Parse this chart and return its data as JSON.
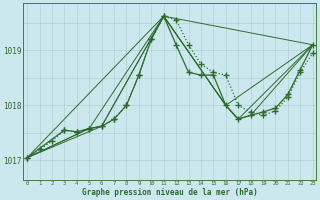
{
  "title": "Graphe pression niveau de la mer (hPa)",
  "background_color": "#cce8ee",
  "grid_color": "#aacccc",
  "line_color": "#2d6a2d",
  "yticks": [
    1017,
    1018,
    1019
  ],
  "ylim": [
    1016.65,
    1019.85
  ],
  "xlim": [
    -0.3,
    23.3
  ],
  "series": [
    {
      "name": "dotted_with_markers",
      "x": [
        0,
        1,
        2,
        3,
        4,
        5,
        6,
        7,
        8,
        9,
        10,
        11,
        12,
        13,
        14,
        15,
        16,
        17,
        18,
        19,
        20,
        21,
        22,
        23
      ],
      "y": [
        1017.05,
        1017.2,
        1017.35,
        1017.55,
        1017.52,
        1017.58,
        1017.62,
        1017.75,
        1018.0,
        1018.55,
        1019.2,
        1019.62,
        1019.55,
        1019.1,
        1018.75,
        1018.6,
        1018.55,
        1018.0,
        1017.88,
        1017.82,
        1017.9,
        1018.15,
        1018.6,
        1018.95
      ],
      "linestyle": "dotted",
      "linewidth": 0.9,
      "marker": "+",
      "markersize": 4
    },
    {
      "name": "solid_with_markers",
      "x": [
        0,
        3,
        4,
        5,
        6,
        7,
        8,
        9,
        10,
        11,
        12,
        13,
        14,
        15,
        16,
        17,
        18,
        19,
        20,
        21,
        22,
        23
      ],
      "y": [
        1017.05,
        1017.55,
        1017.52,
        1017.58,
        1017.62,
        1017.75,
        1018.0,
        1018.55,
        1019.2,
        1019.62,
        1019.1,
        1018.6,
        1018.55,
        1018.55,
        1018.0,
        1017.75,
        1017.82,
        1017.88,
        1017.95,
        1018.2,
        1018.65,
        1019.1
      ],
      "linestyle": "solid",
      "linewidth": 0.9,
      "marker": "+",
      "markersize": 4
    },
    {
      "name": "thin_line_1",
      "x": [
        0,
        11,
        23
      ],
      "y": [
        1017.05,
        1019.62,
        1019.1
      ],
      "linestyle": "solid",
      "linewidth": 0.7,
      "marker": null,
      "markersize": 0
    },
    {
      "name": "thin_line_2",
      "x": [
        0,
        6,
        11,
        16,
        23
      ],
      "y": [
        1017.05,
        1017.62,
        1019.62,
        1018.0,
        1019.1
      ],
      "linestyle": "solid",
      "linewidth": 0.7,
      "marker": null,
      "markersize": 0
    },
    {
      "name": "thin_line_3",
      "x": [
        0,
        5,
        6,
        11,
        16,
        17,
        23
      ],
      "y": [
        1017.05,
        1017.58,
        1017.62,
        1019.62,
        1018.0,
        1017.75,
        1019.1
      ],
      "linestyle": "solid",
      "linewidth": 0.7,
      "marker": null,
      "markersize": 0
    },
    {
      "name": "thin_line_4",
      "x": [
        0,
        5,
        11,
        16,
        17,
        18,
        23
      ],
      "y": [
        1017.05,
        1017.58,
        1019.62,
        1018.0,
        1017.75,
        1017.82,
        1019.1
      ],
      "linestyle": "solid",
      "linewidth": 0.7,
      "marker": null,
      "markersize": 0
    }
  ]
}
